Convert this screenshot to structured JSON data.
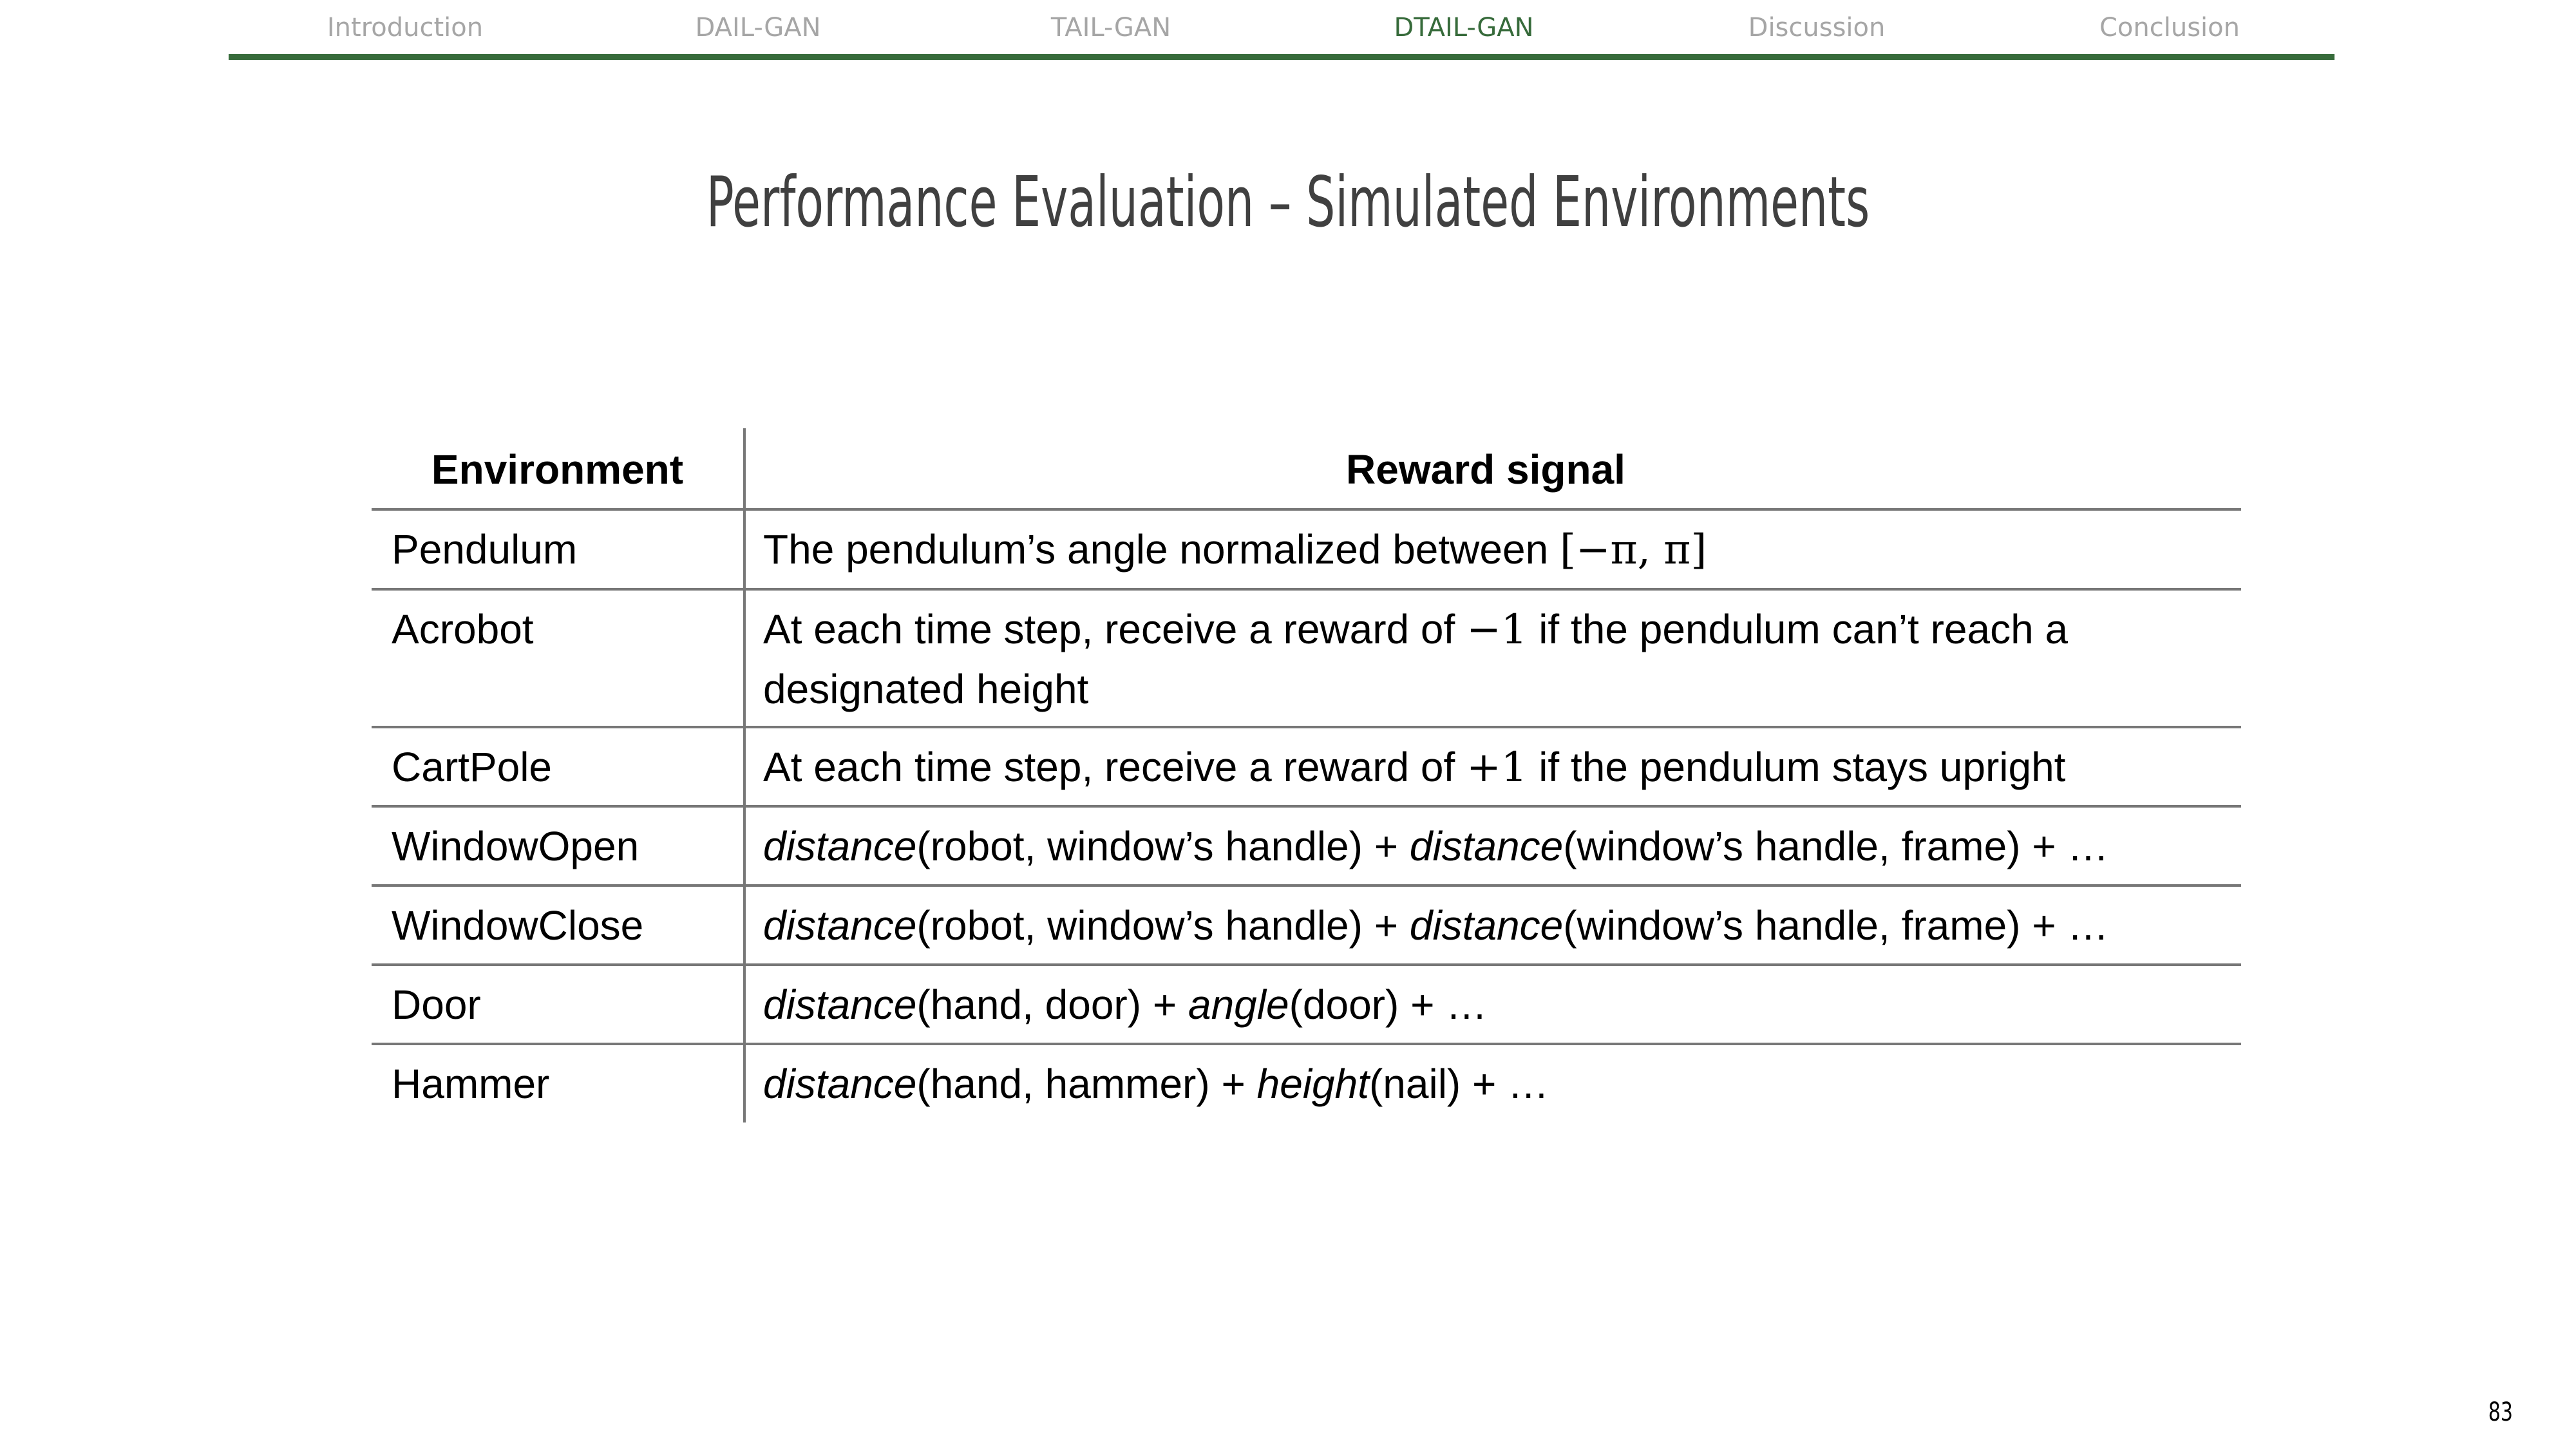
{
  "nav": {
    "items": [
      {
        "label": "Introduction"
      },
      {
        "label": "DAIL-GAN"
      },
      {
        "label": "TAIL-GAN"
      },
      {
        "label": "DTAIL-GAN"
      },
      {
        "label": "Discussion"
      },
      {
        "label": "Conclusion"
      }
    ],
    "active": "DTAIL-GAN",
    "accent_color": "#376b3b",
    "inactive_color": "#a6a6a6"
  },
  "slide": {
    "title": "Performance Evaluation – Simulated Environments",
    "page_number": "83"
  },
  "table": {
    "headers": {
      "environment": "Environment",
      "reward": "Reward signal"
    },
    "rows": [
      {
        "environment": "Pendulum",
        "reward_prefix": "The pendulum’s angle normalized between ",
        "reward_math": "[−π, π]"
      },
      {
        "environment": "Acrobot",
        "reward_prefix": "At each time step, receive a reward of ",
        "reward_math": "−1",
        "reward_suffix": " if the pendulum can’t reach a designated height"
      },
      {
        "environment": "CartPole",
        "reward_prefix": "At each time step, receive a reward of ",
        "reward_math": "+1",
        "reward_suffix": " if the pendulum stays upright"
      },
      {
        "environment": "WindowOpen",
        "parts": [
          "distance",
          "(robot, window’s handle) + ",
          "distance",
          "(window’s handle, frame) + …"
        ]
      },
      {
        "environment": "WindowClose",
        "parts": [
          "distance",
          "(robot, window’s handle) + ",
          "distance",
          "(window’s handle, frame) + …"
        ]
      },
      {
        "environment": "Door",
        "parts": [
          "distance",
          "(hand, door) + ",
          "angle",
          "(door) + …"
        ]
      },
      {
        "environment": "Hammer",
        "parts": [
          "distance",
          "(hand, hammer) + ",
          "height",
          "(nail) + …"
        ]
      }
    ]
  }
}
